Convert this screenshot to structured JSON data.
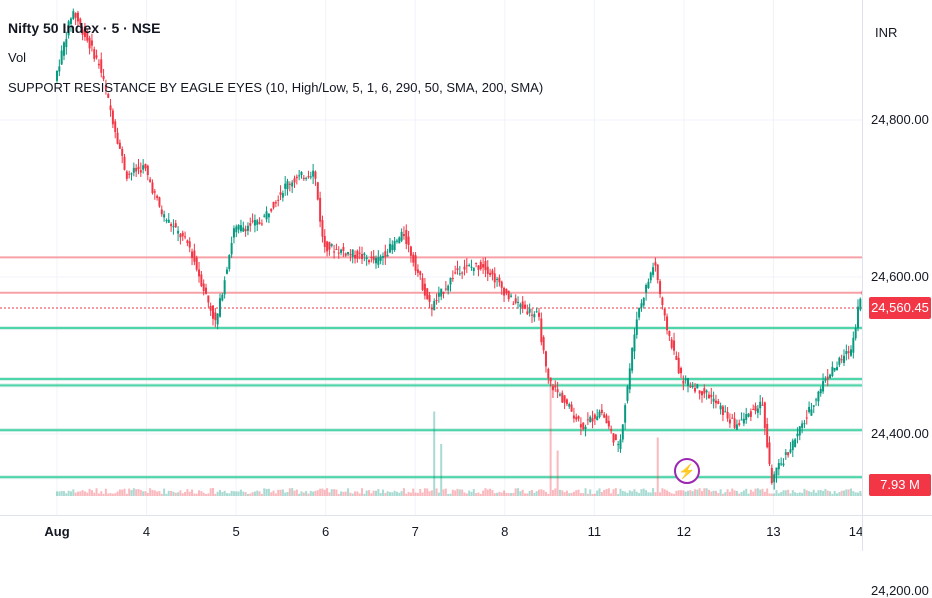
{
  "header": {
    "title": "Nifty 50 Index · 5 · NSE",
    "volume_label": "Vol",
    "indicator_label": "SUPPORT RESISTANCE BY EAGLE EYES (10, High/Low, 5, 1, 6, 290, 50, SMA, 200, SMA)"
  },
  "price_axis": {
    "currency": "INR",
    "current_price": "24,560.45",
    "current_volume": "7.93 M",
    "badge_color": "#f23645"
  },
  "alert_icon": "lightning-icon",
  "chart_data": {
    "type": "candlestick",
    "y_ticks": [
      24800,
      24600,
      24400,
      24200
    ],
    "y_tick_labels": [
      "24,800.00",
      "24,600.00",
      "24,400.00",
      "24,200.00"
    ],
    "ylim": [
      24090,
      24990
    ],
    "x_ticks": [
      "Aug",
      "4",
      "5",
      "6",
      "7",
      "8",
      "11",
      "12",
      "13",
      "14"
    ],
    "current_price": 24560.45,
    "resistance_levels": [
      24625,
      24580
    ],
    "support_levels": [
      24535,
      24470,
      24462,
      24405,
      24345
    ],
    "price_path": [
      [
        0,
        24850
      ],
      [
        0.2,
        24940
      ],
      [
        0.5,
        24870
      ],
      [
        0.8,
        24730
      ],
      [
        1.0,
        24740
      ],
      [
        1.2,
        24680
      ],
      [
        1.5,
        24640
      ],
      [
        1.8,
        24540
      ],
      [
        2.0,
        24660
      ],
      [
        2.3,
        24670
      ],
      [
        2.6,
        24720
      ],
      [
        2.9,
        24735
      ],
      [
        3.0,
        24640
      ],
      [
        3.3,
        24630
      ],
      [
        3.6,
        24620
      ],
      [
        3.9,
        24655
      ],
      [
        4.2,
        24560
      ],
      [
        4.5,
        24610
      ],
      [
        4.8,
        24615
      ],
      [
        5.1,
        24570
      ],
      [
        5.4,
        24550
      ],
      [
        5.5,
        24470
      ],
      [
        5.7,
        24440
      ],
      [
        5.9,
        24410
      ],
      [
        6.1,
        24430
      ],
      [
        6.3,
        24380
      ],
      [
        6.5,
        24550
      ],
      [
        6.7,
        24620
      ],
      [
        6.8,
        24550
      ],
      [
        7.0,
        24470
      ],
      [
        7.3,
        24450
      ],
      [
        7.6,
        24410
      ],
      [
        7.9,
        24440
      ],
      [
        8.0,
        24340
      ],
      [
        8.3,
        24400
      ],
      [
        8.6,
        24470
      ],
      [
        8.9,
        24510
      ],
      [
        9.0,
        24580
      ],
      [
        9.1,
        24560
      ]
    ],
    "volume_spikes": [
      [
        4.2,
        0.65
      ],
      [
        4.3,
        0.4
      ],
      [
        5.5,
        0.9
      ],
      [
        5.6,
        0.35
      ],
      [
        6.7,
        0.45
      ]
    ]
  }
}
